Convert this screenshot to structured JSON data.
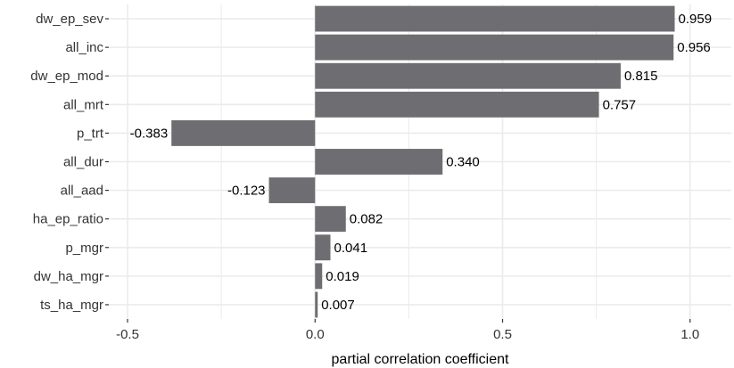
{
  "chart_data": {
    "type": "bar",
    "orientation": "horizontal",
    "categories": [
      "dw_ep_sev",
      "all_inc",
      "dw_ep_mod",
      "all_mrt",
      "p_trt",
      "all_dur",
      "all_aad",
      "ha_ep_ratio",
      "p_mgr",
      "dw_ha_mgr",
      "ts_ha_mgr"
    ],
    "values": [
      0.959,
      0.956,
      0.815,
      0.757,
      -0.383,
      0.34,
      -0.123,
      0.082,
      0.041,
      0.019,
      0.007
    ],
    "value_labels": [
      "0.959",
      "0.956",
      "0.815",
      "0.757",
      "-0.383",
      "0.340",
      "-0.123",
      "0.082",
      "0.041",
      "0.019",
      "0.007"
    ],
    "xlabel": "partial correlation coefficient",
    "ylabel": "",
    "xlim": [
      -0.55,
      1.11
    ],
    "xticks": [
      -0.5,
      0.0,
      0.5,
      1.0
    ],
    "xtick_labels": [
      "-0.5",
      "0.0",
      "0.5",
      "1.0"
    ],
    "grid": true,
    "bar_color": "#6e6e72",
    "grid_color": "#ebebeb"
  }
}
